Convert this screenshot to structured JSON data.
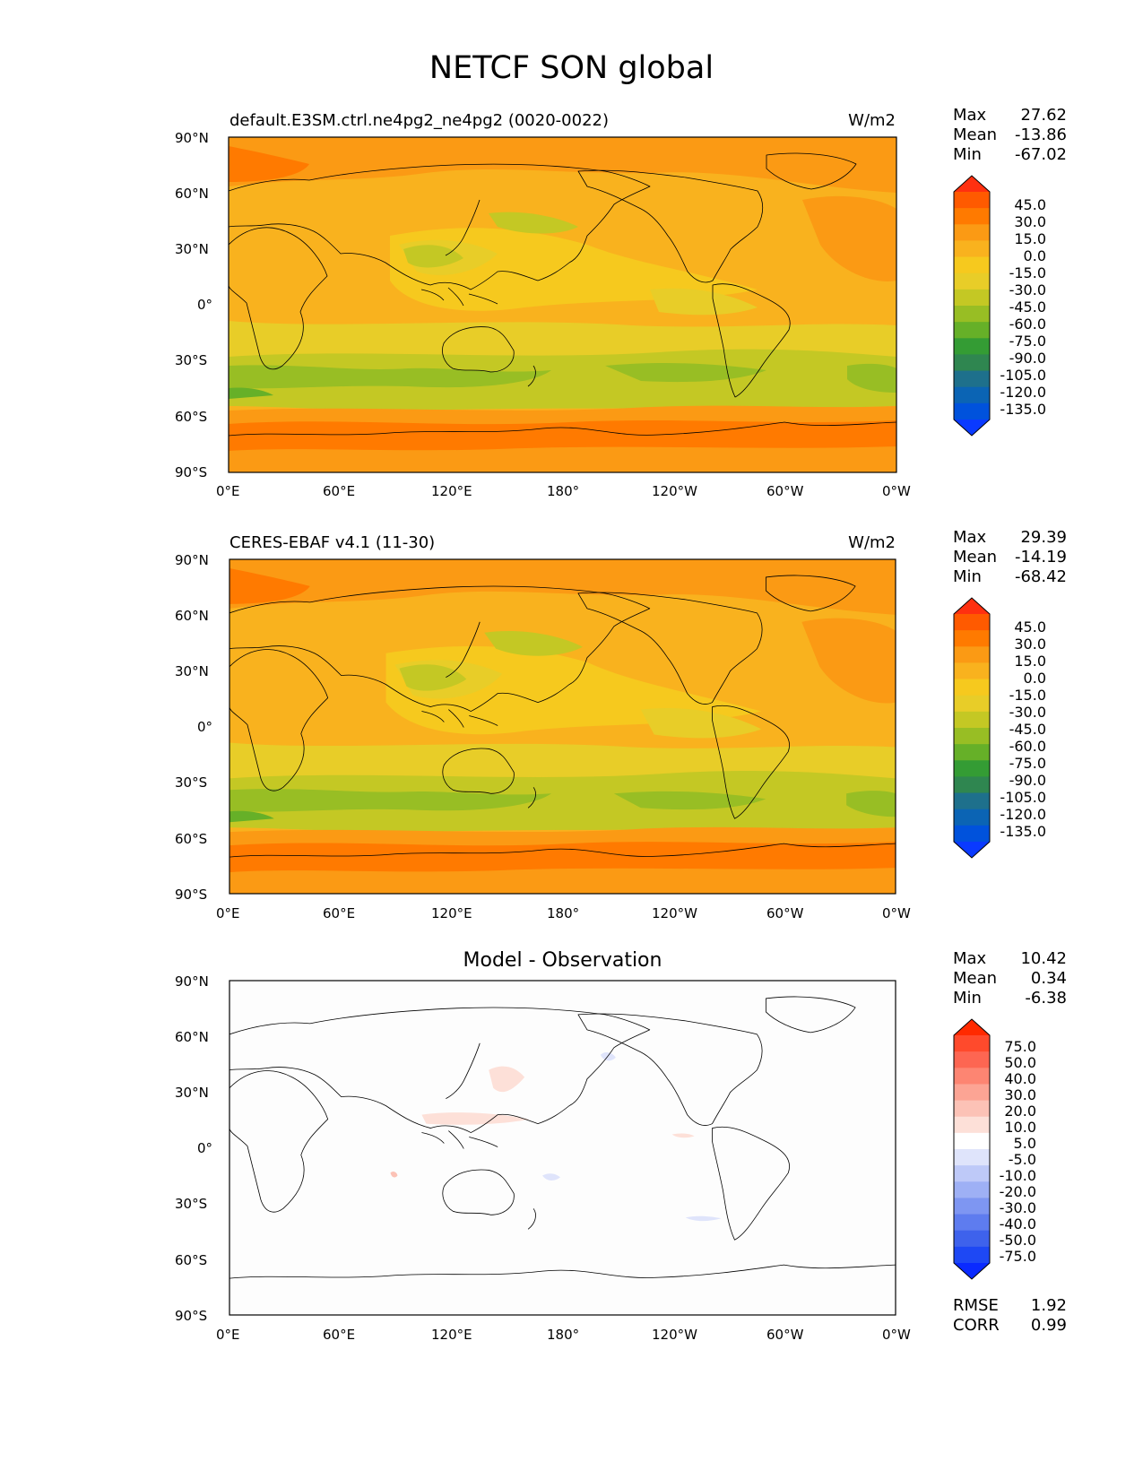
{
  "figure": {
    "title": "NETCF SON global"
  },
  "axes": {
    "lat_ticks": [
      "90°N",
      "60°N",
      "30°N",
      "0°",
      "30°S",
      "60°S",
      "90°S"
    ],
    "lon_ticks": [
      "0°E",
      "60°E",
      "120°E",
      "180°",
      "120°W",
      "60°W",
      "0°W"
    ]
  },
  "panels": [
    {
      "title_left": "default.E3SM.ctrl.ne4pg2_ne4pg2 (0020-0022)",
      "title_right": "W/m2",
      "title_center": "",
      "stats": [
        {
          "label": "Max",
          "value": "27.62"
        },
        {
          "label": "Mean",
          "value": "-13.86"
        },
        {
          "label": "Min",
          "value": "-67.02"
        }
      ],
      "colorbar_levels": [
        "45.0",
        "30.0",
        "15.0",
        "0.0",
        "-15.0",
        "-30.0",
        "-45.0",
        "-60.0",
        "-75.0",
        "-90.0",
        "-105.0",
        "-120.0",
        "-135.0"
      ],
      "colors": [
        "#ff3010",
        "#ff5a00",
        "#ff7a00",
        "#fb9a14",
        "#f9b21e",
        "#f6c91e",
        "#e8cd28",
        "#c4c824",
        "#98be24",
        "#66b028",
        "#349c34",
        "#2f8650",
        "#1e708c",
        "#0b64b4",
        "#0052dc",
        "#0a3aff"
      ]
    },
    {
      "title_left": "CERES-EBAF v4.1 (11-30)",
      "title_right": "W/m2",
      "title_center": "",
      "stats": [
        {
          "label": "Max",
          "value": "29.39"
        },
        {
          "label": "Mean",
          "value": "-14.19"
        },
        {
          "label": "Min",
          "value": "-68.42"
        }
      ],
      "colorbar_levels": [
        "45.0",
        "30.0",
        "15.0",
        "0.0",
        "-15.0",
        "-30.0",
        "-45.0",
        "-60.0",
        "-75.0",
        "-90.0",
        "-105.0",
        "-120.0",
        "-135.0"
      ],
      "colors": [
        "#ff3010",
        "#ff5a00",
        "#ff7a00",
        "#fb9a14",
        "#f9b21e",
        "#f6c91e",
        "#e8cd28",
        "#c4c824",
        "#98be24",
        "#66b028",
        "#349c34",
        "#2f8650",
        "#1e708c",
        "#0b64b4",
        "#0052dc",
        "#0a3aff"
      ]
    },
    {
      "title_left": "",
      "title_right": "",
      "title_center": "Model - Observation",
      "stats": [
        {
          "label": "Max",
          "value": "10.42"
        },
        {
          "label": "Mean",
          "value": "0.34"
        },
        {
          "label": "Min",
          "value": "-6.38"
        }
      ],
      "colorbar_levels": [
        "75.0",
        "50.0",
        "40.0",
        "30.0",
        "20.0",
        "10.0",
        "5.0",
        "-5.0",
        "-10.0",
        "-20.0",
        "-30.0",
        "-40.0",
        "-50.0",
        "-75.0"
      ],
      "colors": [
        "#ff2a00",
        "#ff4a2c",
        "#fd6652",
        "#fd8572",
        "#fca494",
        "#fcc2b6",
        "#fde0d8",
        "#ffffff",
        "#dfe4fb",
        "#bec9f8",
        "#9eb0f5",
        "#7e96f2",
        "#5e7cef",
        "#3e62ec",
        "#1e48f4",
        "#0a2aff"
      ],
      "extra_stats": [
        {
          "label": "RMSE",
          "value": "1.92"
        },
        {
          "label": "CORR",
          "value": "0.99"
        }
      ]
    }
  ]
}
